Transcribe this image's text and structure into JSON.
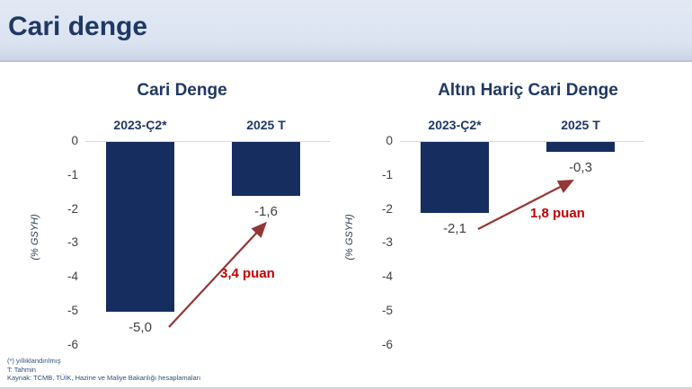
{
  "header": {
    "title": "Cari denge"
  },
  "chart_data": {
    "type": "bar",
    "layout": "two side-by-side bar charts, negative bars hanging from zero line",
    "bar_color": "#152e5f",
    "arrow_color": "#943634",
    "annotation_color": "#c00000",
    "charts": [
      {
        "title": "Cari Denge",
        "categories": [
          "2023-Ç2*",
          "2025 T"
        ],
        "values": [
          -5.0,
          -1.6
        ],
        "value_labels": [
          "-5,0",
          "-1,6"
        ],
        "annotation": "3,4 puan",
        "ylabel": "(% GSYH)",
        "ylim": [
          -6,
          0
        ],
        "yticks": [
          "0",
          "-1",
          "-2",
          "-3",
          "-4",
          "-5",
          "-6"
        ],
        "grid": false,
        "legend": false
      },
      {
        "title": "Altın Hariç Cari Denge",
        "categories": [
          "2023-Ç2*",
          "2025 T"
        ],
        "values": [
          -2.1,
          -0.3
        ],
        "value_labels": [
          "-2,1",
          "-0,3"
        ],
        "annotation": "1,8 puan",
        "ylabel": "(% GSYH)",
        "ylim": [
          -6,
          0
        ],
        "yticks": [
          "0",
          "-1",
          "-2",
          "-3",
          "-4",
          "-5",
          "-6"
        ],
        "grid": false,
        "legend": false
      }
    ]
  },
  "footnotes": [
    "(*) yıllıklandırılmış",
    "T: Tahmin",
    "Kaynak: TCMB, TÜİK, Hazine ve Maliye Bakanlığı hesaplamaları"
  ]
}
